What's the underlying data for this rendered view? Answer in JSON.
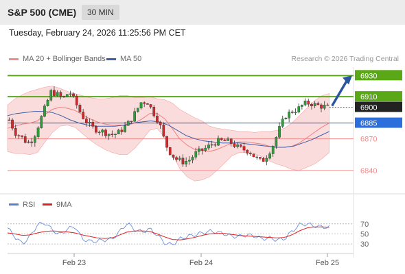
{
  "header": {
    "title": "S&P 500 (CME)",
    "timeframe": "30 MIN"
  },
  "datetime": "Tuesday, February 24, 2026 11:25:56 PM CET",
  "legend": {
    "ma20": "MA 20 + Bollinger Bands",
    "ma50": "MA 50",
    "credit": "Research © 2026 Trading Central",
    "rsi": "RSI",
    "rsi_ma": "9MA"
  },
  "colors": {
    "up": "#2e9e3a",
    "down": "#d62728",
    "bollinger": "#f8c0c0",
    "ma20": "#f07f7f",
    "ma50": "#3a5ea8",
    "resistance": "#5aa818",
    "pivot": "#2a6fdb",
    "support": "#f28b8b",
    "arrow": "#2a56a0",
    "rsi": "#6b8fd8",
    "rsi_ma": "#e02020"
  },
  "chart_data": [
    {
      "type": "candlestick",
      "x_ticks": [
        "Feb 23",
        "Feb 24",
        "Feb 25"
      ],
      "ylim": [
        6823,
        6938
      ],
      "levels": [
        {
          "value": 6930,
          "label": "6930",
          "kind": "resistance"
        },
        {
          "value": 6910,
          "label": "6910",
          "kind": "resistance"
        },
        {
          "value": 6900,
          "label": "6900",
          "kind": "last"
        },
        {
          "value": 6885,
          "label": "6885",
          "kind": "pivot"
        },
        {
          "value": 6870,
          "label": "6870",
          "kind": "support"
        },
        {
          "value": 6840,
          "label": "6840",
          "kind": "support"
        }
      ],
      "close_path": [
        6888,
        6876,
        6872,
        6866,
        6870,
        6885,
        6900,
        6915,
        6912,
        6908,
        6915,
        6905,
        6893,
        6885,
        6880,
        6878,
        6876,
        6874,
        6875,
        6880,
        6886,
        6895,
        6905,
        6905,
        6895,
        6885,
        6865,
        6855,
        6850,
        6848,
        6850,
        6856,
        6859,
        6862,
        6866,
        6868,
        6868,
        6866,
        6862,
        6860,
        6858,
        6852,
        6848,
        6855,
        6865,
        6880,
        6892,
        6896,
        6898,
        6903,
        6904,
        6902,
        6901,
        6900
      ],
      "ma20_path": [
        6880,
        6882,
        6884,
        6885,
        6887,
        6893,
        6898,
        6900,
        6899,
        6897,
        6893,
        6889,
        6886,
        6884,
        6883,
        6883,
        6883,
        6885,
        6889,
        6894,
        6894,
        6889,
        6880,
        6870,
        6864,
        6860,
        6859,
        6858,
        6860,
        6863,
        6866,
        6867,
        6867,
        6866,
        6865,
        6863,
        6862,
        6862,
        6863,
        6866,
        6871,
        6876,
        6881,
        6885
      ],
      "ma50_path": [
        6892,
        6894,
        6895,
        6896,
        6896,
        6895,
        6892,
        6888,
        6885,
        6883,
        6882,
        6882,
        6882,
        6883,
        6885,
        6886,
        6887,
        6886,
        6883,
        6878,
        6873,
        6870,
        6868,
        6867,
        6866,
        6866,
        6866,
        6865,
        6864,
        6863,
        6862,
        6862,
        6863,
        6866,
        6869,
        6873,
        6877
      ],
      "forecast": {
        "from": 6900,
        "to": 6930
      }
    },
    {
      "type": "line",
      "name": "RSI",
      "yticks": [
        30,
        50,
        70
      ],
      "ylim": [
        22,
        82
      ],
      "rsi": [
        62,
        44,
        30,
        45,
        68,
        72,
        58,
        48,
        60,
        65,
        40,
        35,
        36,
        38,
        40,
        55,
        72,
        58,
        54,
        60,
        48,
        32,
        28,
        40,
        45,
        48,
        52,
        55,
        54,
        50,
        45,
        45,
        48,
        46,
        40,
        42,
        38,
        40,
        55,
        68,
        70,
        66,
        64,
        63
      ],
      "rsi_ma": [
        52,
        50,
        47,
        48,
        52,
        55,
        56,
        55,
        54,
        52,
        48,
        45,
        42,
        41,
        42,
        48,
        54,
        56,
        56,
        55,
        50,
        44,
        39,
        38,
        40,
        43,
        47,
        50,
        51,
        51,
        49,
        47,
        46,
        45,
        44,
        43,
        42,
        43,
        48,
        56,
        62,
        64,
        64,
        63
      ]
    }
  ]
}
